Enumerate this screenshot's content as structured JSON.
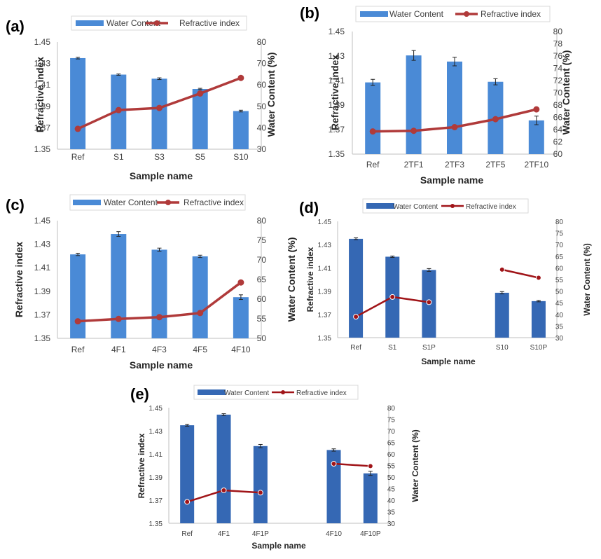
{
  "chart_data": [
    {
      "type": "bar",
      "panel": "(a)",
      "categories": [
        "Ref",
        "S1",
        "S3",
        "S5",
        "S10"
      ],
      "series": [
        {
          "name": "Water Content",
          "kind": "bar",
          "axis": "right",
          "values": [
            72.5,
            64.8,
            62.9,
            58.1,
            47.8
          ],
          "errors": [
            0.4,
            0.3,
            0.4,
            0.3,
            0.4
          ]
        },
        {
          "name": "Refractive index",
          "kind": "line",
          "axis": "left",
          "values": [
            1.369,
            1.3865,
            1.3885,
            1.402,
            1.4165
          ]
        }
      ],
      "xlabel": "Sample name",
      "ylabel": "Refractive index",
      "y2label": "Water Content (%)",
      "ylim": [
        1.35,
        1.45
      ],
      "yticks": [
        "1.35",
        "1.37",
        "1.39",
        "1.41",
        "1.43",
        "1.45"
      ],
      "y2lim": [
        30,
        80
      ],
      "y2ticks": [
        "30",
        "40",
        "50",
        "60",
        "70",
        "80"
      ]
    },
    {
      "type": "bar",
      "panel": "(b)",
      "categories": [
        "Ref",
        "2TF1",
        "2TF3",
        "2TF5",
        "2TF10"
      ],
      "series": [
        {
          "name": "Water Content",
          "kind": "bar",
          "axis": "right",
          "values": [
            71.7,
            76.1,
            75.1,
            71.8,
            65.5
          ],
          "errors": [
            0.5,
            0.8,
            0.7,
            0.5,
            0.7
          ]
        },
        {
          "name": "Refractive index",
          "kind": "line",
          "axis": "left",
          "values": [
            1.3685,
            1.369,
            1.372,
            1.3785,
            1.3865
          ]
        }
      ],
      "xlabel": "Sample name",
      "ylabel": "Refractive index",
      "y2label": "Water Content (%)",
      "ylim": [
        1.35,
        1.45
      ],
      "yticks": [
        "1.35",
        "1.37",
        "1.39",
        "1.41",
        "1.43",
        "1.45"
      ],
      "y2lim": [
        60,
        80
      ],
      "y2ticks": [
        "60",
        "62",
        "64",
        "66",
        "68",
        "70",
        "72",
        "74",
        "76",
        "78",
        "80"
      ]
    },
    {
      "type": "bar",
      "panel": "(c)",
      "categories": [
        "Ref",
        "4F1",
        "4F3",
        "4F5",
        "4F10"
      ],
      "series": [
        {
          "name": "Water Content",
          "kind": "bar",
          "axis": "right",
          "values": [
            71.4,
            76.6,
            72.6,
            70.9,
            60.5
          ],
          "errors": [
            0.3,
            0.6,
            0.4,
            0.3,
            0.6
          ]
        },
        {
          "name": "Refractive index",
          "kind": "line",
          "axis": "left",
          "values": [
            1.3645,
            1.3665,
            1.368,
            1.3715,
            1.3975
          ]
        }
      ],
      "xlabel": "Sample name",
      "ylabel": "Refractive index",
      "y2label": "Water Content (%)",
      "ylim": [
        1.35,
        1.45
      ],
      "yticks": [
        "1.35",
        "1.37",
        "1.39",
        "1.41",
        "1.43",
        "1.45"
      ],
      "y2lim": [
        50,
        80
      ],
      "y2ticks": [
        "50",
        "55",
        "60",
        "65",
        "70",
        "75",
        "80"
      ]
    },
    {
      "type": "bar",
      "panel": "(d)",
      "categories": [
        "Ref",
        "S1",
        "S1P",
        "",
        "S10",
        "S10P"
      ],
      "series": [
        {
          "name": "Water Content",
          "kind": "bar",
          "axis": "right",
          "values": [
            72.5,
            64.8,
            59.1,
            null,
            49.3,
            45.7
          ],
          "errors": [
            0.4,
            0.3,
            0.6,
            null,
            0.5,
            0.3
          ]
        },
        {
          "name": "Refractive index",
          "kind": "line",
          "axis": "left",
          "values": [
            1.368,
            1.385,
            1.3805,
            null,
            1.4085,
            1.4015
          ]
        }
      ],
      "xlabel": "Sample name",
      "ylabel": "Refractive index",
      "y2label": "Water Content (%)",
      "ylim": [
        1.35,
        1.45
      ],
      "yticks": [
        "1.35",
        "1.37",
        "1.39",
        "1.41",
        "1.43",
        "1.45"
      ],
      "y2lim": [
        30,
        80
      ],
      "y2ticks": [
        "30",
        "35",
        "40",
        "45",
        "50",
        "55",
        "60",
        "65",
        "70",
        "75",
        "80"
      ]
    },
    {
      "type": "bar",
      "panel": "(e)",
      "categories": [
        "Ref",
        "4F1",
        "4F1P",
        "",
        "4F10",
        "4F10P"
      ],
      "series": [
        {
          "name": "Water Content",
          "kind": "bar",
          "axis": "right",
          "values": [
            72.4,
            77.0,
            63.4,
            null,
            61.7,
            51.6
          ],
          "errors": [
            0.4,
            0.4,
            0.7,
            null,
            0.5,
            0.9
          ]
        },
        {
          "name": "Refractive index",
          "kind": "line",
          "axis": "left",
          "values": [
            1.3685,
            1.3785,
            1.3765,
            null,
            1.4015,
            1.3995
          ]
        }
      ],
      "xlabel": "Sample name",
      "ylabel": "Refractive index",
      "y2label": "Water Content (%)",
      "ylim": [
        1.35,
        1.45
      ],
      "yticks": [
        "1.35",
        "1.37",
        "1.39",
        "1.41",
        "1.43",
        "1.45"
      ],
      "y2lim": [
        30,
        80
      ],
      "y2ticks": [
        "30",
        "35",
        "40",
        "45",
        "50",
        "55",
        "60",
        "65",
        "70",
        "75",
        "80"
      ]
    }
  ],
  "colors": {
    "bar_light": "#4a8ad6",
    "bar_dark": "#3568b4",
    "line_red": "#b03a3a",
    "line_darkred": "#a01418",
    "error": "#222222",
    "axis": "#bfbfbf"
  }
}
